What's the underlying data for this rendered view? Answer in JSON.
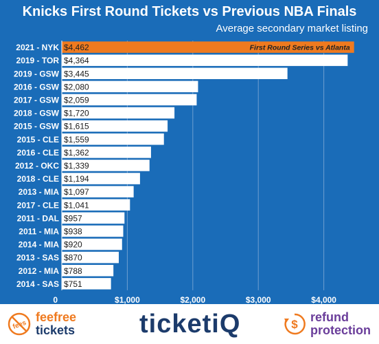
{
  "title": "Knicks First Round Tickets vs Previous NBA Finals",
  "subtitle": "Average secondary market listing",
  "chart_data": {
    "type": "bar",
    "orientation": "horizontal",
    "categories": [
      "2021 - NYK",
      "2019 - TOR",
      "2019 - GSW",
      "2016 - GSW",
      "2017 - GSW",
      "2018 - GSW",
      "2015 - GSW",
      "2015 - CLE",
      "2016 - CLE",
      "2012 - OKC",
      "2018 - CLE",
      "2013 - MIA",
      "2017 - CLE",
      "2011 - DAL",
      "2011 - MIA",
      "2014 - MIA",
      "2013 - SAS",
      "2012 - MIA",
      "2014 - SAS"
    ],
    "values": [
      4462,
      4364,
      3445,
      2080,
      2059,
      1720,
      1615,
      1559,
      1362,
      1339,
      1194,
      1097,
      1041,
      957,
      938,
      920,
      870,
      788,
      751
    ],
    "value_labels": [
      "$4,462",
      "$4,364",
      "$3,445",
      "$2,080",
      "$2,059",
      "$1,720",
      "$1,615",
      "$1,559",
      "$1,362",
      "$1,339",
      "$1,194",
      "$1,097",
      "$1,041",
      "$957",
      "$938",
      "$920",
      "$870",
      "$788",
      "$751"
    ],
    "xlim": [
      0,
      4570
    ],
    "x_ticks": [
      0,
      1000,
      2000,
      3000,
      4000
    ],
    "x_tick_labels": [
      "0",
      "$1,000",
      "$2,000",
      "$3,000",
      "$4,000"
    ],
    "grid": true,
    "highlight_index": 0,
    "annotation": "First Round Series vs Atlanta",
    "colors": {
      "background": "#1a6cb8",
      "bar": "#ffffff",
      "highlight_bar": "#ef7a1f",
      "text": "#ffffff",
      "grid": "#6f9fd0"
    }
  },
  "footer": {
    "left": {
      "badge": "fees",
      "line1": "feefree",
      "line2": "tickets"
    },
    "center": {
      "logo": "ticketiQ"
    },
    "right": {
      "icon": "$",
      "line1": "refund",
      "line2": "protection"
    }
  }
}
